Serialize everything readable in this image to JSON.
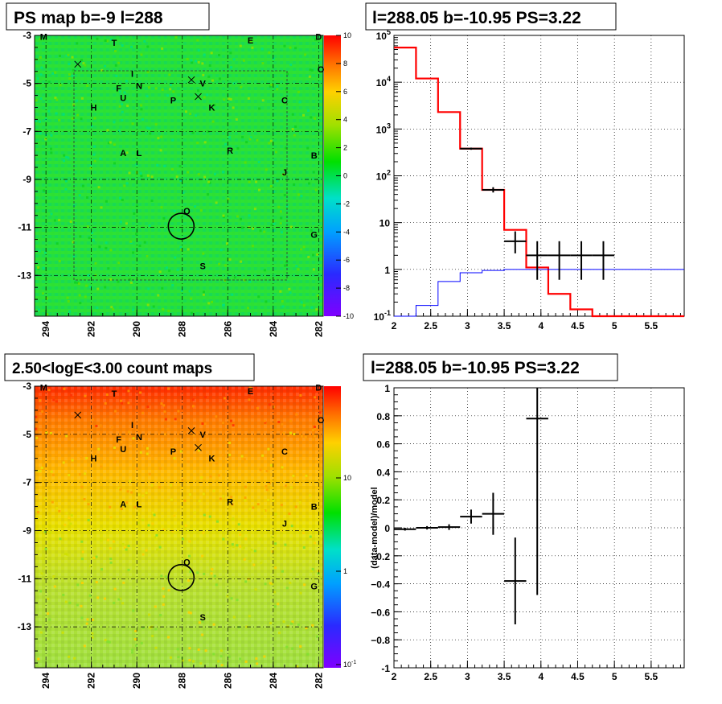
{
  "chart_data": [
    {
      "id": "ps_map",
      "type": "heatmap",
      "title": "PS map b=-9 l=288",
      "x_ticks": [
        294,
        292,
        290,
        288,
        286,
        284,
        282
      ],
      "y_ticks": [
        -3,
        -5,
        -7,
        -9,
        -11,
        -13
      ],
      "xlim": [
        294.5,
        281.8
      ],
      "ylim": [
        -14.7,
        -3.0
      ],
      "colorbar_ticks": [
        10,
        8,
        6,
        4,
        2,
        0,
        -2,
        -4,
        -6,
        -8,
        -10
      ],
      "colorbar_range": [
        -10,
        10
      ],
      "sources": [
        {
          "label": "M",
          "l": 294.1,
          "b": -3.05
        },
        {
          "label": "T",
          "l": 291.0,
          "b": -3.3
        },
        {
          "label": "E",
          "l": 285.0,
          "b": -3.2
        },
        {
          "label": "D",
          "l": 282.0,
          "b": -3.05
        },
        {
          "label": "O",
          "l": 281.9,
          "b": -4.4
        },
        {
          "label": "I",
          "l": 290.2,
          "b": -4.6
        },
        {
          "label": "F",
          "l": 290.8,
          "b": -5.2
        },
        {
          "label": "N",
          "l": 289.9,
          "b": -5.1
        },
        {
          "label": "V",
          "l": 287.1,
          "b": -5.0
        },
        {
          "label": "U",
          "l": 290.6,
          "b": -5.6
        },
        {
          "label": "P",
          "l": 288.4,
          "b": -5.7
        },
        {
          "label": "C",
          "l": 283.5,
          "b": -5.7
        },
        {
          "label": "H",
          "l": 291.9,
          "b": -6.0
        },
        {
          "label": "K",
          "l": 286.7,
          "b": -6.0
        },
        {
          "label": "A",
          "l": 290.6,
          "b": -7.9
        },
        {
          "label": "L",
          "l": 289.9,
          "b": -7.9
        },
        {
          "label": "R",
          "l": 285.9,
          "b": -7.8
        },
        {
          "label": "B",
          "l": 282.2,
          "b": -8.0
        },
        {
          "label": "J",
          "l": 283.5,
          "b": -8.7
        },
        {
          "label": "Q",
          "l": 287.8,
          "b": -10.3
        },
        {
          "label": "G",
          "l": 282.2,
          "b": -11.3
        },
        {
          "label": "S",
          "l": 287.1,
          "b": -12.6
        }
      ],
      "crosses": [
        {
          "l": 292.6,
          "b": -4.2
        },
        {
          "l": 287.6,
          "b": -4.85
        },
        {
          "l": 287.3,
          "b": -5.55
        }
      ],
      "target": {
        "l": 288.05,
        "b": -10.95
      }
    },
    {
      "id": "spectrum",
      "type": "line",
      "title": "l=288.05 b=-10.95 PS=3.22",
      "x_ticks": [
        2,
        2.5,
        3,
        3.5,
        4,
        4.5,
        5,
        5.5
      ],
      "y_ticks": [
        "10^-1",
        "1",
        "10",
        "10^2",
        "10^3",
        "10^4",
        "10^5"
      ],
      "xlim": [
        2.0,
        5.95
      ],
      "ylim": [
        0.1,
        100000
      ],
      "log_y": true,
      "grid": true,
      "series": [
        {
          "name": "",
          "color": "#ff0000",
          "bin_edges": [
            2.0,
            2.3,
            2.6,
            2.9,
            3.2,
            3.5,
            3.8,
            4.1,
            4.4,
            4.7,
            5.0,
            5.3,
            5.6,
            5.95
          ],
          "values": [
            55000,
            12000,
            2300,
            380,
            50,
            7,
            1.1,
            0.3,
            0.14,
            0.1,
            0.1,
            0.1,
            0.1
          ]
        },
        {
          "name": "",
          "color": "#0000ff",
          "bin_edges": [
            2.0,
            2.3,
            2.6,
            2.9,
            3.2,
            3.5,
            3.8,
            4.1,
            4.4,
            4.7,
            5.0,
            5.3,
            5.6,
            5.95
          ],
          "values": [
            0.1,
            0.17,
            0.55,
            0.85,
            0.95,
            1.0,
            1.0,
            1.0,
            1.0,
            1.0,
            1.0,
            1.0,
            1.0
          ]
        },
        {
          "name": "",
          "color": "#000000",
          "type": "errorbar",
          "points": [
            {
              "x": 3.05,
              "y": 380,
              "xerr": 0.15,
              "ylo": 360,
              "yhi": 400
            },
            {
              "x": 3.35,
              "y": 50,
              "xerr": 0.15,
              "ylo": 44,
              "yhi": 57
            },
            {
              "x": 3.65,
              "y": 4,
              "xerr": 0.15,
              "ylo": 2.2,
              "yhi": 6.5
            },
            {
              "x": 3.95,
              "y": 2,
              "xerr": 0.15,
              "ylo": 0.6,
              "yhi": 4
            },
            {
              "x": 4.25,
              "y": 2,
              "xerr": 0.15,
              "ylo": 0.6,
              "yhi": 4
            },
            {
              "x": 4.55,
              "y": 2,
              "xerr": 0.15,
              "ylo": 0.6,
              "yhi": 4
            },
            {
              "x": 4.85,
              "y": 2,
              "xerr": 0.15,
              "ylo": 0.6,
              "yhi": 4
            }
          ]
        }
      ]
    },
    {
      "id": "count_map",
      "type": "heatmap",
      "title": "2.50<logE<3.00 count maps",
      "x_ticks": [
        294,
        292,
        290,
        288,
        286,
        284,
        282
      ],
      "y_ticks": [
        -3,
        -5,
        -7,
        -9,
        -11,
        -13
      ],
      "xlim": [
        294.5,
        281.8
      ],
      "ylim": [
        -14.7,
        -3.0
      ],
      "colorbar_ticks": [
        "10",
        "1",
        "10^-1"
      ],
      "log_z": true
    },
    {
      "id": "residual",
      "type": "scatter",
      "title": "l=288.05 b=-10.95 PS=3.22",
      "ylabel": "(data-model)/model",
      "x_ticks": [
        2,
        2.5,
        3,
        3.5,
        4,
        4.5,
        5,
        5.5
      ],
      "y_ticks": [
        1,
        0.8,
        0.6,
        0.4,
        0.2,
        0,
        -0.2,
        -0.4,
        -0.6,
        -0.8,
        -1
      ],
      "xlim": [
        2.0,
        5.95
      ],
      "ylim": [
        -1,
        1
      ],
      "grid": true,
      "points": [
        {
          "x": 2.15,
          "y": -0.01,
          "xerr": 0.15,
          "yerr": 0.01
        },
        {
          "x": 2.45,
          "y": 0.0,
          "xerr": 0.15,
          "yerr": 0.012
        },
        {
          "x": 2.75,
          "y": 0.005,
          "xerr": 0.15,
          "yerr": 0.02
        },
        {
          "x": 3.05,
          "y": 0.08,
          "xerr": 0.15,
          "yerr": 0.05
        },
        {
          "x": 3.35,
          "y": 0.1,
          "xerr": 0.15,
          "yerr": 0.15
        },
        {
          "x": 3.65,
          "y": -0.38,
          "xerr": 0.15,
          "yerr": 0.31
        },
        {
          "x": 3.95,
          "y": 0.78,
          "xerr": 0.15,
          "yerr": 1.26
        }
      ]
    }
  ]
}
